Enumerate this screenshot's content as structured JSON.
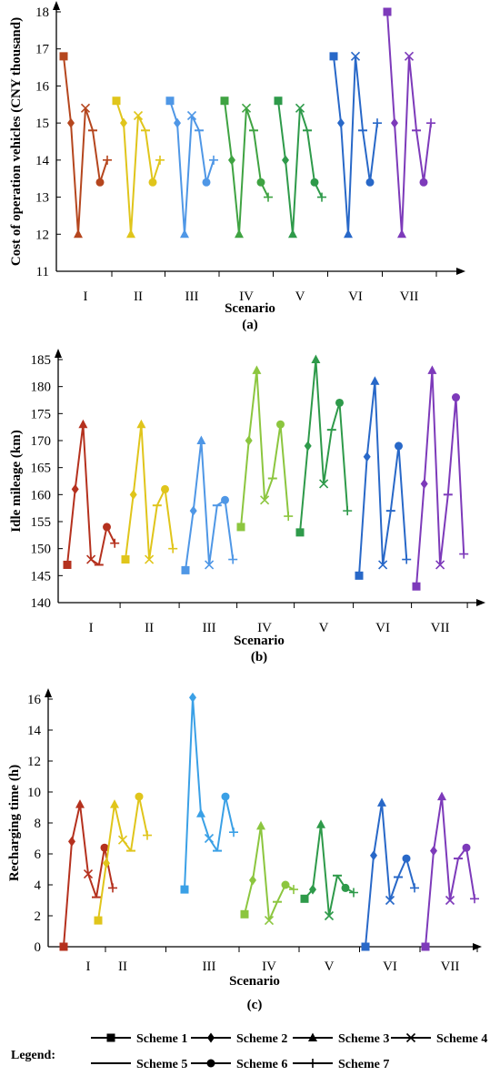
{
  "chart_data": [
    {
      "type": "line",
      "panel_label": "(a)",
      "xlabel": "Scenario",
      "ylabel": "Cost of operation vehicles (CNY thousand)",
      "ylim": [
        11,
        18
      ],
      "yticks": [
        11,
        12,
        13,
        14,
        15,
        16,
        17,
        18
      ],
      "categories": [
        "I",
        "II",
        "III",
        "IV",
        "V",
        "VI",
        "VII"
      ],
      "colors": [
        "#b5461e",
        "#e0c51b",
        "#4f97e6",
        "#3fa342",
        "#2e9a4a",
        "#2868c8",
        "#7d3aba"
      ],
      "series": [
        {
          "scenario": "I",
          "values": [
            16.8,
            15.0,
            12.0,
            15.4,
            14.8,
            13.4,
            14.0
          ]
        },
        {
          "scenario": "II",
          "values": [
            15.6,
            15.0,
            12.0,
            15.2,
            14.8,
            13.4,
            14.0
          ]
        },
        {
          "scenario": "III",
          "values": [
            15.6,
            15.0,
            12.0,
            15.2,
            14.8,
            13.4,
            14.0
          ]
        },
        {
          "scenario": "IV",
          "values": [
            15.6,
            14.0,
            12.0,
            15.4,
            14.8,
            13.4,
            13.0
          ]
        },
        {
          "scenario": "V",
          "values": [
            15.6,
            14.0,
            12.0,
            15.4,
            14.8,
            13.4,
            13.0
          ]
        },
        {
          "scenario": "VI",
          "values": [
            16.8,
            15.0,
            12.0,
            16.8,
            14.8,
            13.4,
            15.0
          ]
        },
        {
          "scenario": "VII",
          "values": [
            18.0,
            15.0,
            12.0,
            16.8,
            14.8,
            13.4,
            15.0
          ]
        }
      ]
    },
    {
      "type": "line",
      "panel_label": "(b)",
      "xlabel": "Scenario",
      "ylabel": "Idle mileage (km)",
      "ylim": [
        140,
        185
      ],
      "yticks": [
        140,
        145,
        150,
        155,
        160,
        165,
        170,
        175,
        180,
        185
      ],
      "categories": [
        "I",
        "II",
        "III",
        "IV",
        "V",
        "VI",
        "VII"
      ],
      "colors": [
        "#b5311e",
        "#e0c51b",
        "#4f97e6",
        "#8cc63f",
        "#2e9a4a",
        "#2868c8",
        "#7d3aba"
      ],
      "series": [
        {
          "scenario": "I",
          "values": [
            147,
            161,
            173,
            148,
            147,
            154,
            151
          ]
        },
        {
          "scenario": "II",
          "values": [
            148,
            160,
            173,
            148,
            158,
            161,
            150
          ]
        },
        {
          "scenario": "III",
          "values": [
            146,
            157,
            170,
            147,
            158,
            159,
            148
          ]
        },
        {
          "scenario": "IV",
          "values": [
            154,
            170,
            183,
            159,
            163,
            173,
            156
          ]
        },
        {
          "scenario": "V",
          "values": [
            153,
            169,
            185,
            162,
            172,
            177,
            157
          ]
        },
        {
          "scenario": "VI",
          "values": [
            145,
            167,
            181,
            147,
            157,
            169,
            148
          ]
        },
        {
          "scenario": "VII",
          "values": [
            143,
            162,
            183,
            147,
            160,
            178,
            149
          ]
        }
      ]
    },
    {
      "type": "line",
      "panel_label": "(c)",
      "xlabel": "Scenario",
      "ylabel": "Recharging time (h)",
      "ylim": [
        0,
        16
      ],
      "yticks": [
        0,
        2,
        4,
        6,
        8,
        10,
        12,
        14,
        16
      ],
      "categories": [
        "I",
        "II",
        "III",
        "IV",
        "V",
        "VI",
        "VII"
      ],
      "colors": [
        "#b5311e",
        "#e0c51b",
        "#3aa0e6",
        "#8cc63f",
        "#2e9a4a",
        "#2868c8",
        "#7d3aba"
      ],
      "series": [
        {
          "scenario": "I",
          "values": [
            0.0,
            6.8,
            9.2,
            4.7,
            3.2,
            6.4,
            3.8
          ]
        },
        {
          "scenario": "II",
          "values": [
            1.7,
            5.4,
            9.2,
            6.9,
            6.2,
            9.7,
            7.2
          ]
        },
        {
          "scenario": "III",
          "values": [
            3.7,
            16.1,
            8.6,
            7.0,
            6.2,
            9.7,
            7.4
          ]
        },
        {
          "scenario": "IV",
          "values": [
            2.1,
            4.3,
            7.8,
            1.7,
            2.9,
            4.0,
            3.7
          ]
        },
        {
          "scenario": "V",
          "values": [
            3.1,
            3.7,
            7.9,
            2.0,
            4.6,
            3.8,
            3.5
          ]
        },
        {
          "scenario": "VI",
          "values": [
            0.0,
            5.9,
            9.3,
            3.0,
            4.5,
            5.7,
            3.8
          ]
        },
        {
          "scenario": "VII",
          "values": [
            0.0,
            6.2,
            9.7,
            3.0,
            5.7,
            6.4,
            3.1
          ]
        }
      ]
    }
  ],
  "legend": {
    "title": "Legend:",
    "items": [
      {
        "label": "Scheme 1",
        "marker": "square"
      },
      {
        "label": "Scheme 2",
        "marker": "diamond"
      },
      {
        "label": "Scheme 3",
        "marker": "triangle"
      },
      {
        "label": "Scheme 4",
        "marker": "x"
      },
      {
        "label": "Scheme 5",
        "marker": "dash"
      },
      {
        "label": "Scheme 6",
        "marker": "circle"
      },
      {
        "label": "Scheme 7",
        "marker": "plus"
      }
    ]
  }
}
